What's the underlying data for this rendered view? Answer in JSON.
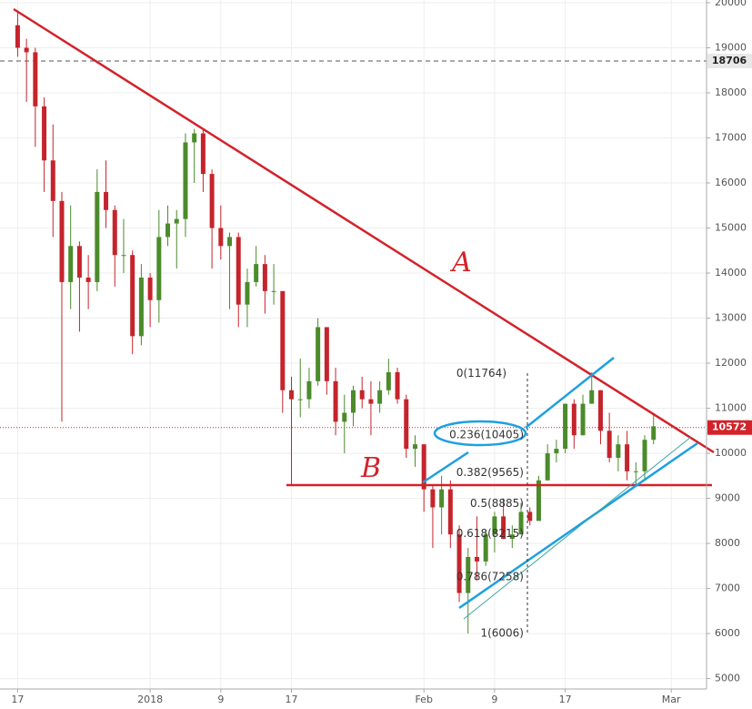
{
  "chart_data": {
    "type": "candlestick",
    "x": [
      "2017-12-17",
      "2017-12-18",
      "2017-12-19",
      "2017-12-20",
      "2017-12-21",
      "2017-12-22",
      "2017-12-23",
      "2017-12-24",
      "2017-12-25",
      "2017-12-26",
      "2017-12-27",
      "2017-12-28",
      "2017-12-29",
      "2017-12-30",
      "2017-12-31",
      "2018-01-01",
      "2018-01-02",
      "2018-01-03",
      "2018-01-04",
      "2018-01-05",
      "2018-01-06",
      "2018-01-07",
      "2018-01-08",
      "2018-01-09",
      "2018-01-10",
      "2018-01-11",
      "2018-01-12",
      "2018-01-13",
      "2018-01-14",
      "2018-01-15",
      "2018-01-16",
      "2018-01-17",
      "2018-01-18",
      "2018-01-19",
      "2018-01-20",
      "2018-01-21",
      "2018-01-22",
      "2018-01-23",
      "2018-01-24",
      "2018-01-25",
      "2018-01-26",
      "2018-01-27",
      "2018-01-28",
      "2018-01-29",
      "2018-01-30",
      "2018-01-31",
      "2018-02-01",
      "2018-02-02",
      "2018-02-03",
      "2018-02-04",
      "2018-02-05",
      "2018-02-06",
      "2018-02-07",
      "2018-02-08",
      "2018-02-09",
      "2018-02-10",
      "2018-02-11",
      "2018-02-12",
      "2018-02-13",
      "2018-02-14",
      "2018-02-15",
      "2018-02-16",
      "2018-02-17",
      "2018-02-18",
      "2018-02-19",
      "2018-02-20",
      "2018-02-21",
      "2018-02-22",
      "2018-02-23",
      "2018-02-24",
      "2018-02-25",
      "2018-02-26",
      "2018-02-27"
    ],
    "open": [
      19500,
      19000,
      18900,
      17700,
      16500,
      15600,
      13800,
      14600,
      13900,
      13800,
      15800,
      15400,
      14400,
      14400,
      12600,
      13900,
      13400,
      14800,
      15100,
      15200,
      16900,
      17100,
      16200,
      15000,
      14600,
      14800,
      13300,
      13800,
      14200,
      13600,
      13600,
      11400,
      11200,
      11200,
      11600,
      12800,
      11600,
      10700,
      10900,
      11400,
      11200,
      11100,
      11400,
      11800,
      11200,
      10100,
      10200,
      9200,
      8800,
      9200,
      8200,
      6900,
      7700,
      7600,
      8200,
      8600,
      8100,
      8200,
      8700,
      8500,
      9400,
      10000,
      10100,
      11100,
      10400,
      11100,
      11400,
      10500,
      9900,
      10200,
      9600,
      9600,
      10300
    ],
    "high": [
      19800,
      19200,
      19000,
      17900,
      17300,
      15800,
      15500,
      14700,
      14400,
      16300,
      16500,
      15500,
      15200,
      14500,
      14200,
      14000,
      15400,
      15500,
      15400,
      17100,
      17200,
      17200,
      16300,
      15500,
      14900,
      14900,
      14100,
      14600,
      14400,
      14200,
      13600,
      11700,
      12100,
      11900,
      13000,
      12800,
      11900,
      11300,
      11500,
      11700,
      11600,
      11600,
      12100,
      11900,
      11300,
      10400,
      10200,
      9300,
      9500,
      9400,
      8400,
      7900,
      8600,
      8300,
      8700,
      9000,
      8400,
      8900,
      8800,
      9500,
      10200,
      10300,
      11100,
      11200,
      11300,
      11800,
      11400,
      10900,
      10400,
      10500,
      9800,
      10400,
      10900
    ],
    "low": [
      18800,
      17800,
      16800,
      15800,
      14800,
      10700,
      13200,
      12700,
      13200,
      13600,
      15000,
      13700,
      14000,
      12200,
      12400,
      12800,
      12900,
      14600,
      14100,
      14800,
      16000,
      15800,
      14100,
      14300,
      13200,
      12800,
      12800,
      13700,
      13100,
      13300,
      10900,
      9300,
      10800,
      11000,
      11500,
      11300,
      10400,
      10000,
      10600,
      11000,
      10400,
      10900,
      11300,
      11100,
      9900,
      9700,
      8700,
      7900,
      8200,
      7900,
      6700,
      6000,
      7200,
      7500,
      7800,
      8100,
      7900,
      8200,
      8400,
      8500,
      9400,
      9800,
      10000,
      10100,
      10400,
      11100,
      10200,
      9800,
      9600,
      9400,
      9300,
      9400,
      10200
    ],
    "close": [
      19000,
      18900,
      17700,
      16500,
      15600,
      13800,
      14600,
      13900,
      13800,
      15800,
      15400,
      14400,
      14400,
      12600,
      13900,
      13400,
      14800,
      15100,
      15200,
      16900,
      17100,
      16200,
      15000,
      14600,
      14800,
      13300,
      13800,
      14200,
      13600,
      13600,
      11400,
      11200,
      11200,
      11600,
      12800,
      11600,
      10700,
      10900,
      11400,
      11200,
      11100,
      11400,
      11800,
      11200,
      10100,
      10200,
      9200,
      8800,
      9200,
      8200,
      6900,
      7700,
      7600,
      8200,
      8600,
      8100,
      8200,
      8700,
      8500,
      9400,
      10000,
      10100,
      11100,
      10400,
      11100,
      11400,
      10500,
      9900,
      10200,
      9600,
      9600,
      10300,
      10600
    ],
    "up_color": "#4b8b2b",
    "down_color": "#c5242c",
    "xlim": [
      "2017-12-15",
      "2018-03-05"
    ],
    "xticks": [
      {
        "value": "2017-12-17",
        "label": "17"
      },
      {
        "value": "2018-01-01",
        "label": "2018"
      },
      {
        "value": "2018-01-09",
        "label": "9"
      },
      {
        "value": "2018-01-17",
        "label": "17"
      },
      {
        "value": "2018-02-01",
        "label": "Feb"
      },
      {
        "value": "2018-02-09",
        "label": "9"
      },
      {
        "value": "2018-02-17",
        "label": "17"
      },
      {
        "value": "2018-03-01",
        "label": "Mar"
      }
    ],
    "ylim": [
      4770,
      20060
    ],
    "yticks": [
      5000,
      6000,
      7000,
      8000,
      9000,
      10000,
      11000,
      12000,
      13000,
      14000,
      15000,
      16000,
      17000,
      18000,
      19000,
      20000
    ],
    "grid": true,
    "reference_lines": [
      {
        "value": 18706,
        "color": "#555555"
      },
      {
        "value": 10572,
        "color": "#d3222a"
      }
    ],
    "fib_levels": [
      {
        "label": "0(11764)",
        "value": 11764
      },
      {
        "label": "0.236(10405)",
        "value": 10405
      },
      {
        "label": "0.382(9565)",
        "value": 9565
      },
      {
        "label": "0.5(8885)",
        "value": 8885
      },
      {
        "label": "0.618(8215)",
        "value": 8215
      },
      {
        "label": "0.786(7258)",
        "value": 7258
      },
      {
        "label": "1(6006)",
        "value": 6006
      }
    ],
    "annotations": [
      "A",
      "B"
    ]
  }
}
